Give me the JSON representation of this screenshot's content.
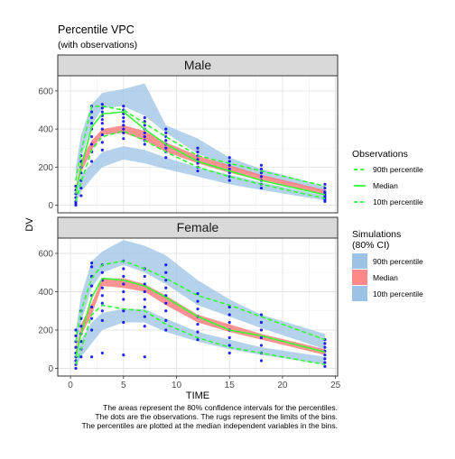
{
  "chart_data": {
    "type": "line",
    "title": "Percentile VPC",
    "subtitle": "(with observations)",
    "xlabel": "TIME",
    "ylabel": "DV",
    "xlim": [
      -1.2,
      25.2
    ],
    "ylim": [
      -40,
      680
    ],
    "xticks": [
      0,
      5,
      10,
      15,
      20,
      25
    ],
    "yticks": [
      0,
      200,
      400,
      600
    ],
    "grid": true,
    "legend_position": "right",
    "colors": {
      "obs_line": "#33ff33",
      "median_band": "#ff7777",
      "outer_band": "#9cc3e6",
      "points": "#0000ee",
      "strip_fill": "#d9d9d9"
    },
    "legend": {
      "observations_title": "Observations",
      "observations_items": [
        "90th percentile",
        "Median",
        "10th percentile"
      ],
      "simulations_title_line1": "Simulations",
      "simulations_title_line2": "(80% CI)",
      "simulations_items": [
        "90th percentile",
        "Median",
        "10th percentile"
      ]
    },
    "caption": [
      "The areas represent the 80% confidence intervals for the percentiles.",
      "The dots are the observations. The rugs represent the limits of the bins.",
      "The percentiles are plotted at the median independent variables in the bins."
    ],
    "bin_times": [
      0.5,
      1,
      2,
      3,
      5,
      7,
      9,
      12,
      15,
      18,
      24
    ],
    "panels": [
      {
        "name": "Male",
        "sim_bands": {
          "p90_lo": [
            110,
            250,
            420,
            510,
            520,
            470,
            380,
            270,
            200,
            150,
            70
          ],
          "p90_hi": [
            200,
            370,
            530,
            590,
            610,
            640,
            420,
            350,
            250,
            190,
            100
          ],
          "p50_lo": [
            60,
            170,
            290,
            370,
            380,
            340,
            280,
            220,
            170,
            130,
            55
          ],
          "p50_hi": [
            90,
            240,
            340,
            400,
            420,
            390,
            330,
            260,
            210,
            160,
            80
          ],
          "p10_lo": [
            10,
            70,
            140,
            200,
            240,
            220,
            190,
            150,
            110,
            80,
            25
          ],
          "p10_hi": [
            60,
            160,
            220,
            280,
            310,
            290,
            250,
            200,
            160,
            120,
            50
          ]
        },
        "obs_percentiles": {
          "p90": [
            130,
            280,
            520,
            520,
            500,
            430,
            360,
            260,
            220,
            180,
            100
          ],
          "p50": [
            60,
            200,
            410,
            480,
            490,
            400,
            320,
            230,
            180,
            130,
            55
          ],
          "p10": [
            20,
            120,
            290,
            360,
            390,
            340,
            280,
            200,
            150,
            110,
            35
          ]
        },
        "observations": [
          {
            "x": 0.5,
            "y": [
              0,
              10,
              20,
              40,
              60,
              80,
              100
            ]
          },
          {
            "x": 1,
            "y": [
              50,
              90,
              130,
              170,
              200,
              230,
              260
            ]
          },
          {
            "x": 2,
            "y": [
              230,
              280,
              320,
              360,
              400,
              430,
              460,
              490,
              520
            ]
          },
          {
            "x": 3,
            "y": [
              290,
              330,
              370,
              400,
              430,
              450,
              470,
              490,
              510,
              530
            ]
          },
          {
            "x": 5,
            "y": [
              350,
              380,
              400,
              420,
              440,
              460,
              480,
              500,
              520
            ]
          },
          {
            "x": 7,
            "y": [
              320,
              340,
              360,
              380,
              400,
              420,
              440,
              460
            ]
          },
          {
            "x": 9,
            "y": [
              250,
              280,
              300,
              320,
              340,
              360,
              380,
              400
            ]
          },
          {
            "x": 12,
            "y": [
              180,
              200,
              220,
              240,
              260,
              280,
              300
            ]
          },
          {
            "x": 15,
            "y": [
              130,
              150,
              170,
              190,
              210,
              230,
              250
            ]
          },
          {
            "x": 18,
            "y": [
              90,
              110,
              130,
              150,
              170,
              190,
              210
            ]
          },
          {
            "x": 24,
            "y": [
              20,
              30,
              40,
              50,
              60,
              70,
              90,
              110
            ]
          }
        ]
      },
      {
        "name": "Female",
        "sim_bands": {
          "p90_lo": [
            100,
            240,
            420,
            500,
            540,
            500,
            440,
            330,
            270,
            210,
            100
          ],
          "p90_hi": [
            200,
            380,
            560,
            610,
            670,
            640,
            590,
            460,
            360,
            280,
            180
          ],
          "p50_lo": [
            60,
            170,
            280,
            430,
            420,
            400,
            330,
            240,
            190,
            150,
            70
          ],
          "p50_hi": [
            90,
            230,
            340,
            470,
            470,
            440,
            380,
            280,
            230,
            180,
            100
          ],
          "p10_lo": [
            10,
            60,
            130,
            200,
            240,
            240,
            190,
            140,
            100,
            70,
            20
          ],
          "p10_hi": [
            60,
            150,
            240,
            290,
            310,
            310,
            260,
            190,
            150,
            110,
            60
          ]
        },
        "obs_percentiles": {
          "p90": [
            140,
            300,
            470,
            540,
            560,
            520,
            470,
            380,
            330,
            270,
            150
          ],
          "p50": [
            60,
            180,
            370,
            470,
            460,
            430,
            370,
            270,
            200,
            170,
            85
          ],
          "p10": [
            20,
            100,
            280,
            330,
            310,
            300,
            230,
            160,
            110,
            80,
            20
          ]
        },
        "observations": [
          {
            "x": 0.5,
            "y": [
              0,
              20,
              40,
              60,
              80,
              110,
              140,
              170,
              200
            ]
          },
          {
            "x": 1,
            "y": [
              60,
              100,
              140,
              180,
              220,
              260,
              300
            ]
          },
          {
            "x": 2,
            "y": [
              60,
              200,
              260,
              320,
              380,
              430,
              480,
              530,
              550
            ]
          },
          {
            "x": 3,
            "y": [
              80,
              250,
              300,
              340,
              380,
              420,
              460,
              500,
              540
            ]
          },
          {
            "x": 5,
            "y": [
              70,
              240,
              300,
              360,
              400,
              440,
              480,
              520,
              560
            ]
          },
          {
            "x": 7,
            "y": [
              60,
              220,
              270,
              320,
              360,
              400,
              440,
              480,
              520
            ]
          },
          {
            "x": 9,
            "y": [
              200,
              250,
              300,
              340,
              380,
              420,
              460,
              500,
              540
            ]
          },
          {
            "x": 12,
            "y": [
              150,
              190,
              230,
              270,
              310,
              350,
              390
            ]
          },
          {
            "x": 15,
            "y": [
              80,
              120,
              160,
              200,
              240,
              280,
              320
            ]
          },
          {
            "x": 18,
            "y": [
              40,
              80,
              120,
              160,
              200,
              240,
              280
            ]
          },
          {
            "x": 24,
            "y": [
              10,
              30,
              50,
              70,
              90,
              110,
              130,
              150
            ]
          }
        ]
      }
    ]
  }
}
